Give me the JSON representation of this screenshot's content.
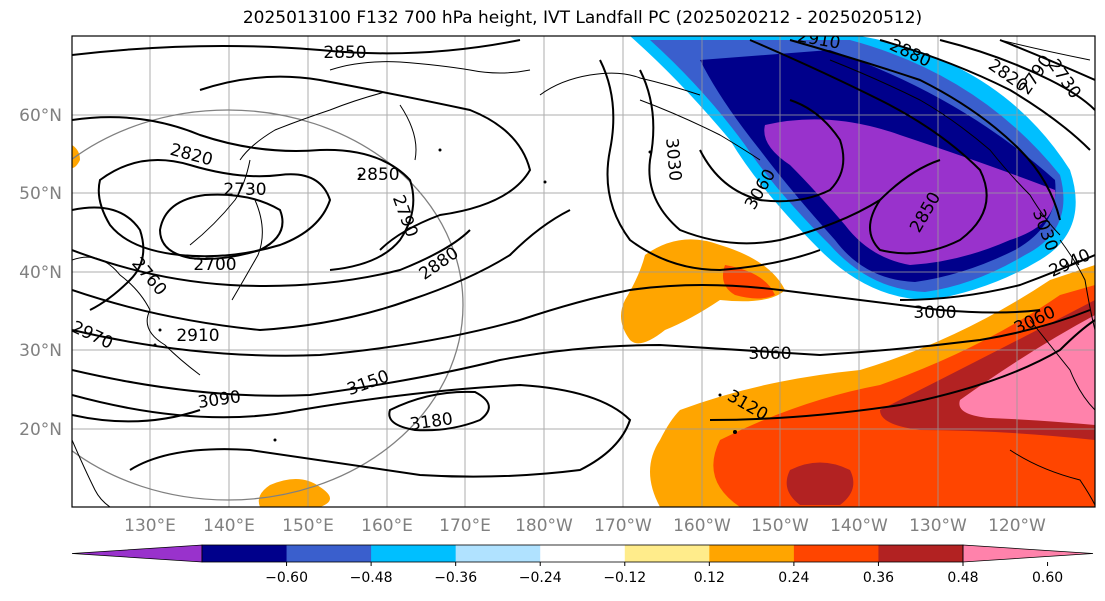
{
  "title": "2025013100 F132 700 hPa height, IVT Landfall PC (2025020212 - 2025020512)",
  "lat_labels": [
    "60°N",
    "50°N",
    "40°N",
    "30°N",
    "20°N"
  ],
  "lon_labels": [
    "130°E",
    "140°E",
    "150°E",
    "160°E",
    "170°E",
    "180°W",
    "170°W",
    "160°W",
    "150°W",
    "140°W",
    "130°W",
    "120°W"
  ],
  "contour_labels": [
    "2850",
    "2820",
    "2730",
    "2850",
    "2790",
    "2700",
    "2760",
    "2880",
    "2910",
    "2970",
    "3090",
    "3150",
    "3180",
    "3030",
    "3060",
    "3120",
    "3060",
    "2850",
    "3000",
    "3060",
    "2910",
    "2880",
    "2820",
    "2790",
    "2730",
    "2940",
    "3030"
  ],
  "colorbar": {
    "ticks": [
      "−0.60",
      "−0.48",
      "−0.36",
      "−0.24",
      "−0.12",
      "0.12",
      "0.24",
      "0.36",
      "0.48",
      "0.60"
    ],
    "colors": [
      "#9932cc",
      "#00008b",
      "#3a5fcd",
      "#00bfff",
      "#b0e2ff",
      "#ffffff",
      "#ffec8b",
      "#ffa500",
      "#ff4500",
      "#b22222",
      "#ff82ab"
    ]
  }
}
